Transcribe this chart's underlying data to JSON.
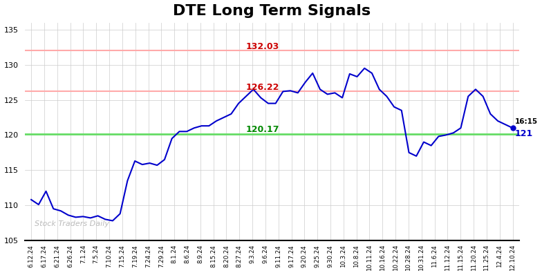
{
  "title": "DTE Long Term Signals",
  "title_fontsize": 16,
  "background_color": "#ffffff",
  "line_color": "#0000cc",
  "line_width": 1.5,
  "hline_green": 120.17,
  "hline_green_color": "#66dd66",
  "hline_green_lw": 2.0,
  "hline_red1": 126.22,
  "hline_red1_color": "#ffaaaa",
  "hline_red1_lw": 1.5,
  "hline_red2": 132.03,
  "hline_red2_color": "#ffaaaa",
  "hline_red2_lw": 1.5,
  "label_132": "132.03",
  "label_132_color": "#cc0000",
  "label_126": "126.22",
  "label_126_color": "#cc0000",
  "label_120": "120.17",
  "label_120_color": "#008800",
  "last_label": "16:15",
  "last_value": "121",
  "last_dot_color": "#0000cc",
  "watermark": "Stock Traders Daily",
  "watermark_color": "#bbbbbb",
  "ylim": [
    105,
    136
  ],
  "yticks": [
    105,
    110,
    115,
    120,
    125,
    130,
    135
  ],
  "x_labels": [
    "6.12.24",
    "6.17.24",
    "6.21.24",
    "6.26.24",
    "7.1.24",
    "7.5.24",
    "7.10.24",
    "7.15.24",
    "7.19.24",
    "7.24.24",
    "7.29.24",
    "8.1.24",
    "8.6.24",
    "8.9.24",
    "8.15.24",
    "8.20.24",
    "8.27.24",
    "9.3.24",
    "9.6.24",
    "9.11.24",
    "9.17.24",
    "9.20.24",
    "9.25.24",
    "9.30.24",
    "10.3.24",
    "10.8.24",
    "10.11.24",
    "10.16.24",
    "10.22.24",
    "10.28.24",
    "10.31.24",
    "11.6.24",
    "11.12.24",
    "11.15.24",
    "11.20.24",
    "11.25.24",
    "12.4.24",
    "12.10.24"
  ],
  "prices": [
    110.8,
    110.1,
    112.0,
    109.5,
    109.2,
    108.6,
    108.3,
    108.4,
    108.2,
    108.5,
    108.0,
    107.8,
    108.8,
    113.5,
    116.3,
    115.8,
    116.0,
    115.7,
    116.5,
    119.5,
    120.5,
    120.5,
    121.0,
    121.3,
    121.3,
    122.0,
    122.5,
    123.0,
    124.5,
    125.5,
    126.5,
    125.3,
    124.5,
    124.5,
    126.2,
    126.3,
    126.0,
    127.5,
    128.8,
    126.5,
    125.8,
    126.0,
    125.3,
    128.7,
    128.3,
    129.5,
    128.8,
    126.5,
    125.5,
    124.0,
    123.5,
    117.5,
    117.0,
    119.0,
    118.5,
    119.8,
    120.0,
    120.3,
    121.0,
    125.5,
    126.5,
    125.5,
    123.0,
    122.0,
    121.5,
    121.0
  ]
}
